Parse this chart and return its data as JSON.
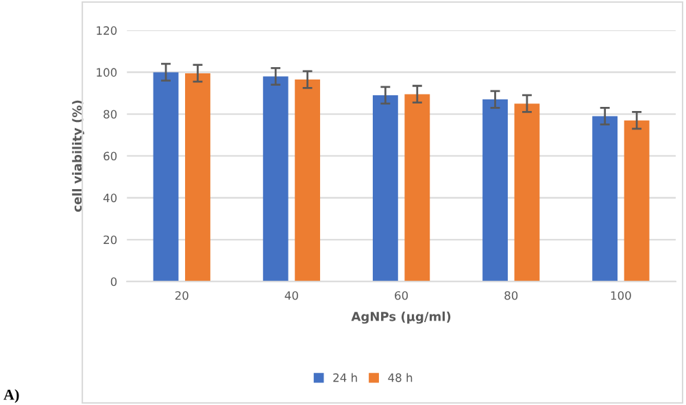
{
  "chart_data": {
    "type": "bar",
    "xlabel": "AgNPs (µg/ml)",
    "ylabel": "cell viability (%)",
    "categories": [
      "20",
      "40",
      "60",
      "80",
      "100"
    ],
    "series": [
      {
        "name": "24 h",
        "color": "#4472c4",
        "values": [
          100,
          98,
          89,
          87,
          79
        ],
        "errors": [
          4,
          4,
          4,
          4,
          4
        ]
      },
      {
        "name": "48 h",
        "color": "#ed7d31",
        "values": [
          99.5,
          96.5,
          89.5,
          85,
          77
        ],
        "errors": [
          4,
          4,
          4,
          4,
          4
        ]
      }
    ],
    "ylim": [
      0,
      120
    ],
    "yticks": [
      0,
      20,
      40,
      60,
      80,
      100,
      120
    ],
    "grid": "y",
    "legend": "bottom",
    "annotations": [
      "A)"
    ]
  }
}
